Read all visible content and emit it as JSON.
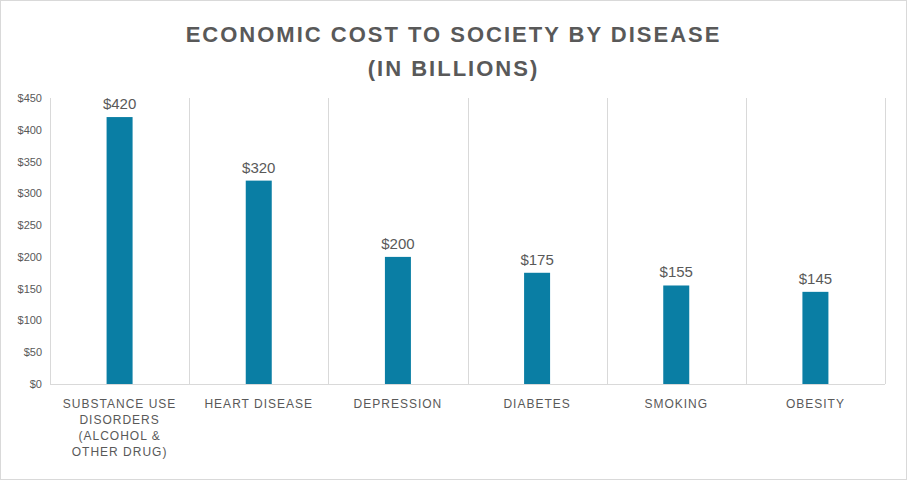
{
  "chart_data": {
    "type": "bar",
    "title": "ECONOMIC COST TO SOCIETY BY DISEASE",
    "subtitle": "(IN BILLIONS)",
    "categories": [
      "SUBSTANCE USE DISORDERS (ALCOHOL & OTHER DRUG)",
      "HEART DISEASE",
      "DEPRESSION",
      "DIABETES",
      "SMOKING",
      "OBESITY"
    ],
    "values": [
      420,
      320,
      200,
      175,
      155,
      145
    ],
    "value_labels": [
      "$420",
      "$320",
      "$200",
      "$175",
      "$155",
      "$145"
    ],
    "color": "#0a7ea4",
    "ylim": [
      0,
      450
    ],
    "yticks": [
      {
        "value": 0,
        "label": "$0"
      },
      {
        "value": 50,
        "label": "$50"
      },
      {
        "value": 100,
        "label": "$100"
      },
      {
        "value": 150,
        "label": "$150"
      },
      {
        "value": 200,
        "label": "$200"
      },
      {
        "value": 250,
        "label": "$250"
      },
      {
        "value": 300,
        "label": "$300"
      },
      {
        "value": 350,
        "label": "$350"
      },
      {
        "value": 400,
        "label": "$400"
      },
      {
        "value": 450,
        "label": "$450"
      }
    ],
    "grid": true,
    "data_labels": true
  }
}
